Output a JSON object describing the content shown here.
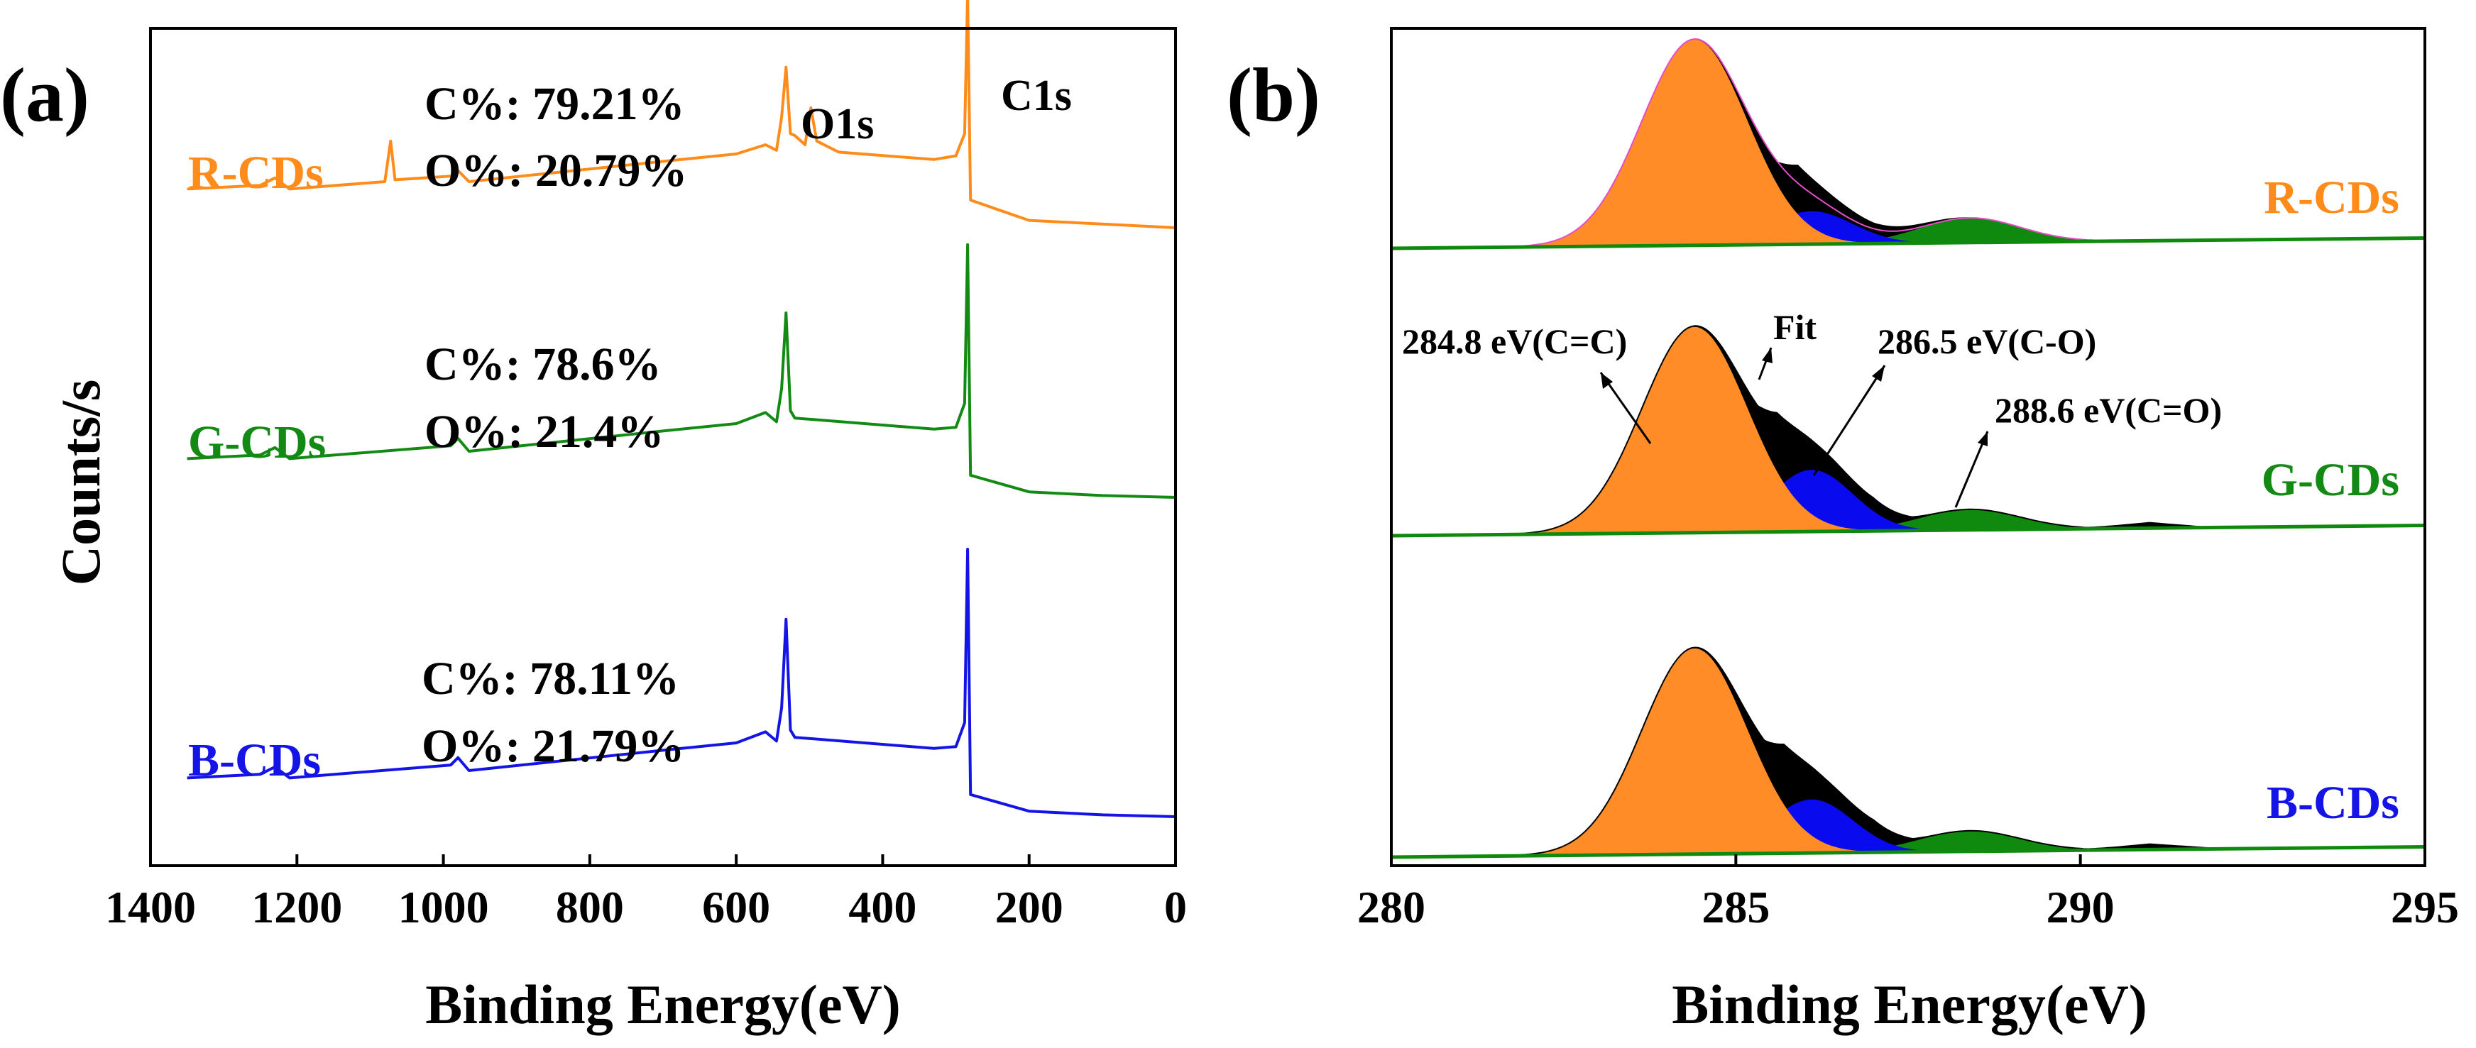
{
  "colors": {
    "R": "#ff8c1a",
    "G": "#138a13",
    "B": "#1414e6",
    "peak1": "#ff8c26",
    "peak2": "#0a0aee",
    "peak3": "#0f8a0f",
    "residual": "#000000",
    "fit": "#e64dc8"
  },
  "chart_data": [
    {
      "type": "line",
      "panel": "(a)",
      "xlabel": "Binding Energy(eV)",
      "ylabel": "Counts/s",
      "xlim": [
        1400,
        0
      ],
      "xticks": [
        1400,
        1200,
        1000,
        800,
        600,
        400,
        200,
        0
      ],
      "xtick_labels": [
        "1400",
        "1200",
        "1000",
        "800",
        "600",
        "400",
        "200",
        "0"
      ],
      "peak_labels": [
        "O1s",
        "C1s"
      ],
      "series": [
        {
          "name": "R-CDs",
          "composition": [
            "C%: 79.21%",
            "O%: 20.79%"
          ],
          "points": [
            [
              1350,
              0.36
            ],
            [
              1250,
              0.38
            ],
            [
              1230,
              0.42
            ],
            [
              1210,
              0.36
            ],
            [
              1080,
              0.4
            ],
            [
              1072,
              0.62
            ],
            [
              1066,
              0.41
            ],
            [
              990,
              0.43
            ],
            [
              980,
              0.46
            ],
            [
              965,
              0.4
            ],
            [
              700,
              0.51
            ],
            [
              600,
              0.55
            ],
            [
              560,
              0.6
            ],
            [
              545,
              0.57
            ],
            [
              538,
              0.75
            ],
            [
              532,
              1.02
            ],
            [
              526,
              0.66
            ],
            [
              520,
              0.65
            ],
            [
              506,
              0.6
            ],
            [
              498,
              0.8
            ],
            [
              490,
              0.62
            ],
            [
              460,
              0.56
            ],
            [
              330,
              0.52
            ],
            [
              300,
              0.54
            ],
            [
              288,
              0.66
            ],
            [
              284,
              1.42
            ],
            [
              280,
              0.3
            ],
            [
              200,
              0.19
            ],
            [
              100,
              0.17
            ],
            [
              0,
              0.15
            ]
          ]
        },
        {
          "name": "G-CDs",
          "composition": [
            "C%: 78.6%",
            "O%: 21.4%"
          ],
          "points": [
            [
              1350,
              0.36
            ],
            [
              1250,
              0.38
            ],
            [
              1230,
              0.42
            ],
            [
              1210,
              0.36
            ],
            [
              990,
              0.43
            ],
            [
              980,
              0.47
            ],
            [
              965,
              0.4
            ],
            [
              700,
              0.51
            ],
            [
              600,
              0.55
            ],
            [
              560,
              0.61
            ],
            [
              545,
              0.56
            ],
            [
              538,
              0.74
            ],
            [
              532,
              1.15
            ],
            [
              526,
              0.62
            ],
            [
              520,
              0.58
            ],
            [
              330,
              0.52
            ],
            [
              300,
              0.53
            ],
            [
              288,
              0.66
            ],
            [
              284,
              1.52
            ],
            [
              280,
              0.27
            ],
            [
              200,
              0.18
            ],
            [
              100,
              0.16
            ],
            [
              0,
              0.15
            ]
          ]
        },
        {
          "name": "B-CDs",
          "composition": [
            "C%: 78.11%",
            "O%: 21.79%"
          ],
          "points": [
            [
              1350,
              0.36
            ],
            [
              1250,
              0.38
            ],
            [
              1230,
              0.42
            ],
            [
              1210,
              0.36
            ],
            [
              990,
              0.43
            ],
            [
              980,
              0.47
            ],
            [
              965,
              0.4
            ],
            [
              700,
              0.51
            ],
            [
              600,
              0.55
            ],
            [
              560,
              0.61
            ],
            [
              545,
              0.56
            ],
            [
              538,
              0.74
            ],
            [
              532,
              1.22
            ],
            [
              526,
              0.62
            ],
            [
              520,
              0.58
            ],
            [
              330,
              0.52
            ],
            [
              300,
              0.53
            ],
            [
              288,
              0.66
            ],
            [
              284,
              1.6
            ],
            [
              280,
              0.27
            ],
            [
              200,
              0.18
            ],
            [
              100,
              0.16
            ],
            [
              0,
              0.15
            ]
          ]
        }
      ]
    },
    {
      "type": "area",
      "panel": "(b)",
      "xlabel": "Binding Energy(eV)",
      "xlim": [
        280,
        295
      ],
      "xticks": [
        280,
        285,
        290,
        295
      ],
      "xtick_labels": [
        "280",
        "285",
        "290",
        "295"
      ],
      "fit_label": "Fit",
      "components": [
        {
          "label": "284.8 eV(C=C)",
          "center": 284.4,
          "fwhm": 1.8,
          "color_key": "peak1"
        },
        {
          "label": "286.5 eV(C-O)",
          "center": 286.1,
          "fwhm": 1.4,
          "color_key": "peak2"
        },
        {
          "label": "288.6 eV(C=O)",
          "center": 288.4,
          "fwhm": 1.7,
          "color_key": "peak3"
        }
      ],
      "series": [
        {
          "name": "R-CDs",
          "amplitudes": [
            1.0,
            0.16,
            0.12
          ],
          "residual": [
            [
              285.6,
              0.0
            ],
            [
              285.9,
              0.09
            ],
            [
              286.4,
              0.06
            ],
            [
              287.0,
              0.03
            ],
            [
              288.5,
              0.0
            ]
          ],
          "baseline": [
            [
              280,
              0.0
            ],
            [
              295,
              0.05
            ]
          ]
        },
        {
          "name": "G-CDs",
          "amplitudes": [
            1.0,
            0.3,
            0.1
          ],
          "residual": [
            [
              285.3,
              0.0
            ],
            [
              285.6,
              0.08
            ],
            [
              286.2,
              0.06
            ],
            [
              287.0,
              0.05
            ],
            [
              287.6,
              0.0
            ],
            [
              290.0,
              0.0
            ],
            [
              291.0,
              0.03
            ],
            [
              292.0,
              0.0
            ]
          ],
          "baseline": [
            [
              280,
              0.0
            ],
            [
              295,
              0.05
            ]
          ]
        },
        {
          "name": "B-CDs",
          "amplitudes": [
            1.0,
            0.26,
            0.1
          ],
          "residual": [
            [
              285.4,
              0.0
            ],
            [
              285.7,
              0.09
            ],
            [
              286.3,
              0.07
            ],
            [
              287.0,
              0.06
            ],
            [
              287.6,
              0.0
            ],
            [
              290.0,
              0.0
            ],
            [
              291.0,
              0.03
            ],
            [
              292.2,
              0.0
            ]
          ],
          "baseline": [
            [
              280,
              0.0
            ],
            [
              295,
              0.05
            ]
          ]
        }
      ]
    }
  ]
}
